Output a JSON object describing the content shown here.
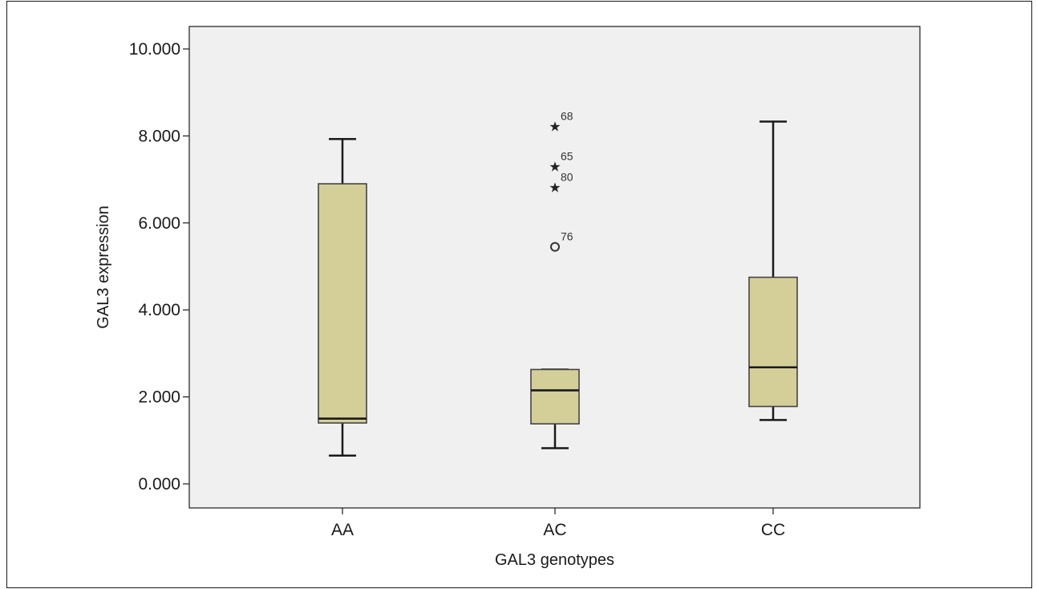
{
  "chart_data": {
    "type": "boxplot",
    "xlabel": "GAL3 genotypes",
    "ylabel": "GAL3 expression",
    "ylim": [
      -0.55,
      10.55
    ],
    "yticks": [
      {
        "value": 0,
        "label": "0.000"
      },
      {
        "value": 2,
        "label": "2.000"
      },
      {
        "value": 4,
        "label": "4.000"
      },
      {
        "value": 6,
        "label": "6.000"
      },
      {
        "value": 8,
        "label": "8.000"
      },
      {
        "value": 10,
        "label": "10.000"
      }
    ],
    "categories": [
      "AA",
      "AC",
      "CC"
    ],
    "boxes": [
      {
        "category": "AA",
        "whisker_low": 0.65,
        "q1": 1.4,
        "median": 1.5,
        "q3": 6.9,
        "whisker_high": 7.93,
        "outliers": []
      },
      {
        "category": "AC",
        "whisker_low": 0.82,
        "q1": 1.38,
        "median": 2.15,
        "q3": 2.63,
        "whisker_high": 2.63,
        "outliers": [
          {
            "value": 8.22,
            "label": "68",
            "marker": "star"
          },
          {
            "value": 7.3,
            "label": "65",
            "marker": "star"
          },
          {
            "value": 6.82,
            "label": "80",
            "marker": "star"
          },
          {
            "value": 5.45,
            "label": "76",
            "marker": "circle"
          }
        ]
      },
      {
        "category": "CC",
        "whisker_low": 1.47,
        "q1": 1.78,
        "median": 2.68,
        "q3": 4.75,
        "whisker_high": 8.33,
        "outliers": []
      }
    ],
    "grid": false,
    "colors": {
      "box_fill": "#d4cf98",
      "plot_bg": "#f0f0f0",
      "stroke": "#1a1a1a"
    }
  }
}
